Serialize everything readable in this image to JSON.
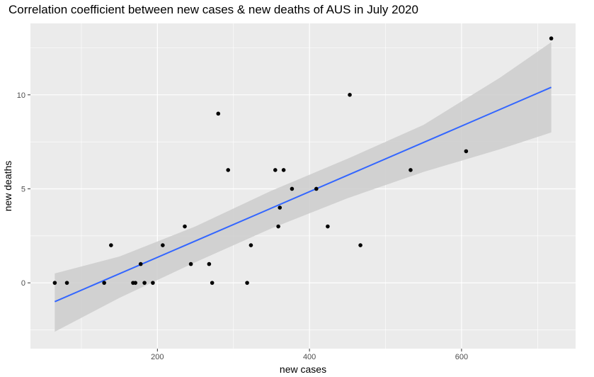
{
  "chart_data": {
    "type": "scatter",
    "title": "Correlation coefficient between new cases & new deaths of AUS in July 2020",
    "xlabel": "new cases",
    "ylabel": "new deaths",
    "xlim": [
      33,
      750
    ],
    "ylim": [
      -3.5,
      13.8
    ],
    "xticks": [
      200,
      400,
      600
    ],
    "yticks": [
      0,
      5,
      10
    ],
    "grid": true,
    "points": [
      {
        "x": 65,
        "y": 0
      },
      {
        "x": 81,
        "y": 0
      },
      {
        "x": 130,
        "y": 0
      },
      {
        "x": 139,
        "y": 2
      },
      {
        "x": 168,
        "y": 0
      },
      {
        "x": 171,
        "y": 0
      },
      {
        "x": 178,
        "y": 1
      },
      {
        "x": 183,
        "y": 0
      },
      {
        "x": 194,
        "y": 0
      },
      {
        "x": 207,
        "y": 2
      },
      {
        "x": 236,
        "y": 3
      },
      {
        "x": 244,
        "y": 1
      },
      {
        "x": 268,
        "y": 1
      },
      {
        "x": 272,
        "y": 0
      },
      {
        "x": 280,
        "y": 9
      },
      {
        "x": 293,
        "y": 6
      },
      {
        "x": 318,
        "y": 0
      },
      {
        "x": 323,
        "y": 2
      },
      {
        "x": 355,
        "y": 6
      },
      {
        "x": 359,
        "y": 3
      },
      {
        "x": 361,
        "y": 4
      },
      {
        "x": 366,
        "y": 6
      },
      {
        "x": 377,
        "y": 5
      },
      {
        "x": 409,
        "y": 5
      },
      {
        "x": 424,
        "y": 3
      },
      {
        "x": 453,
        "y": 10
      },
      {
        "x": 467,
        "y": 2
      },
      {
        "x": 533,
        "y": 6
      },
      {
        "x": 606,
        "y": 7
      },
      {
        "x": 718,
        "y": 13
      }
    ],
    "regression": {
      "x": [
        65,
        718
      ],
      "y": [
        -1.0,
        10.4
      ]
    },
    "confidence_band": {
      "x": [
        65,
        150,
        250,
        350,
        450,
        550,
        650,
        718
      ],
      "lower": [
        -2.6,
        -0.8,
        1.1,
        2.9,
        4.5,
        5.9,
        7.1,
        8.0
      ],
      "upper": [
        0.5,
        1.4,
        3.0,
        4.9,
        6.6,
        8.4,
        10.9,
        12.8
      ]
    },
    "colors": {
      "panel": "#ebebeb",
      "grid": "#ffffff",
      "line": "#3366ff",
      "band": "#cccccc",
      "point": "#000000"
    }
  }
}
